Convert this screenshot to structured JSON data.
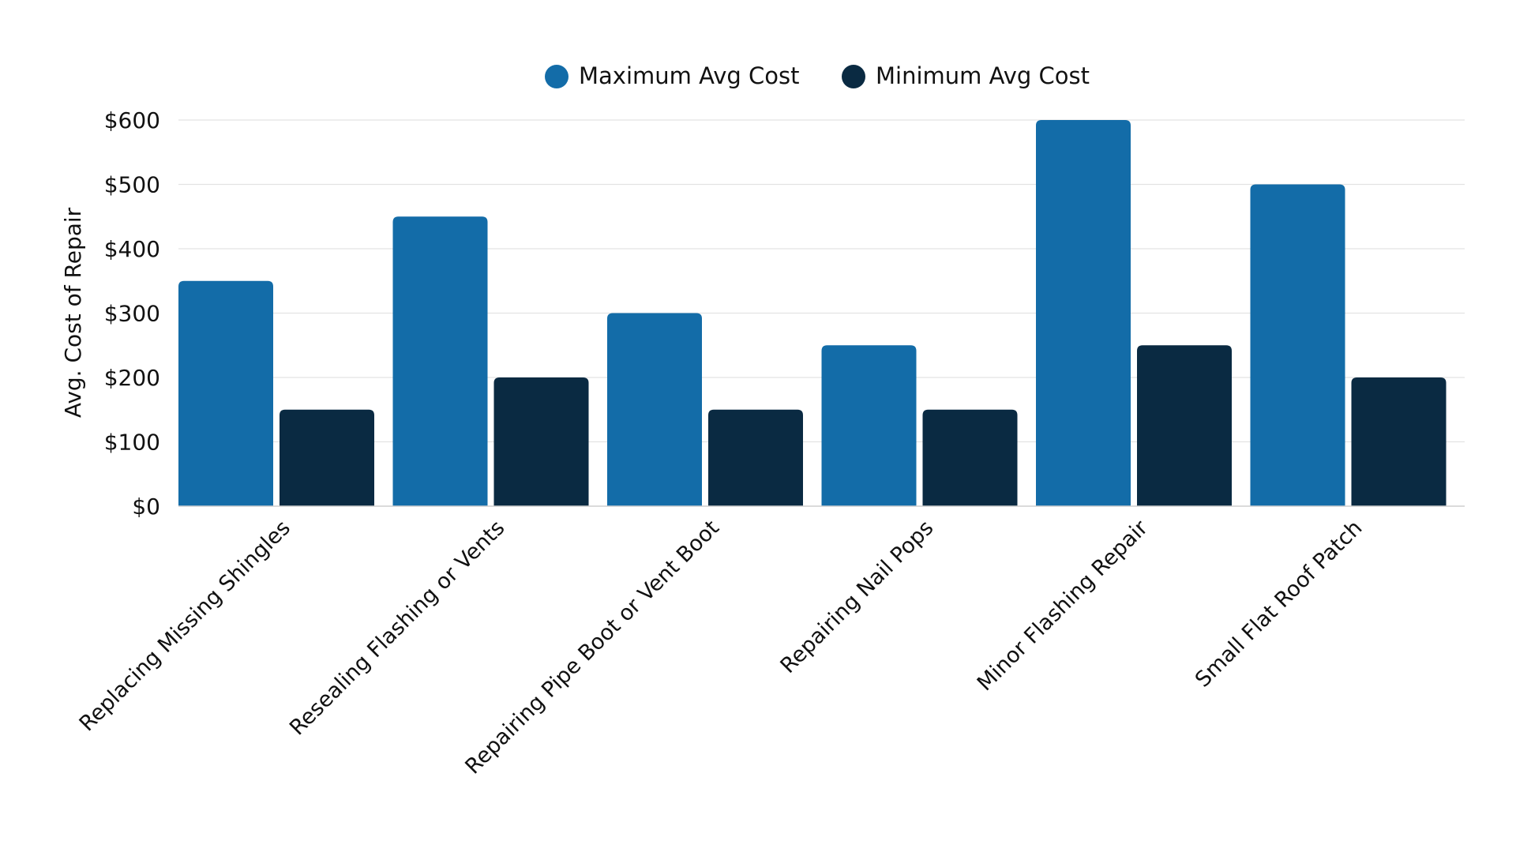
{
  "chart_data": {
    "type": "bar",
    "title": "",
    "xlabel": "",
    "ylabel": "Avg. Cost of Repair",
    "categories": [
      "Replacing Missing Shingles",
      "Resealing Flashing or Vents",
      "Repairing Pipe Boot or Vent Boot",
      "Repairing Nail Pops",
      "Minor Flashing Repair",
      "Small Flat Roof Patch"
    ],
    "series": [
      {
        "name": "Maximum Avg Cost",
        "color": "#136ca8",
        "values": [
          350,
          450,
          300,
          250,
          600,
          500
        ]
      },
      {
        "name": "Minimum Avg Cost",
        "color": "#0a2a42",
        "values": [
          150,
          200,
          150,
          150,
          250,
          200
        ]
      }
    ],
    "ylim": [
      0,
      600
    ],
    "yticks": [
      0,
      100,
      200,
      300,
      400,
      500,
      600
    ],
    "ytick_labels": [
      "$0",
      "$100",
      "$200",
      "$300",
      "$400",
      "$500",
      "$600"
    ],
    "grid": true,
    "legend_position": "top-center"
  }
}
